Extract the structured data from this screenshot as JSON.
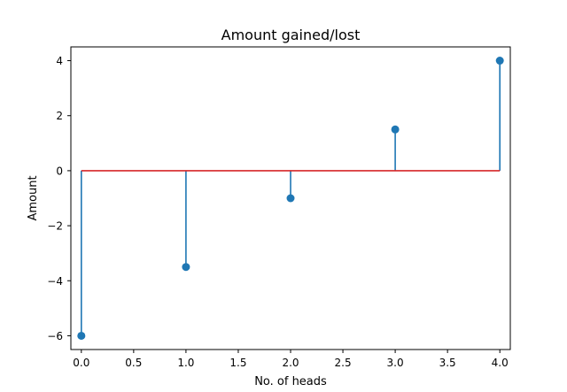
{
  "chart_data": {
    "type": "stem",
    "title": "Amount gained/lost",
    "xlabel": "No. of heads",
    "ylabel": "Amount",
    "x": [
      0,
      1,
      2,
      3,
      4
    ],
    "y": [
      -6,
      -3.5,
      -1,
      1.5,
      4
    ],
    "baseline": 0,
    "xlim": [
      -0.1,
      4.1
    ],
    "ylim": [
      -6.5,
      4.5
    ],
    "xticks": [
      0,
      0.5,
      1,
      1.5,
      2,
      2.5,
      3,
      3.5,
      4
    ],
    "xtick_labels": [
      "0.0",
      "0.5",
      "1.0",
      "1.5",
      "2.0",
      "2.5",
      "3.0",
      "3.5",
      "4.0"
    ],
    "yticks": [
      4,
      2,
      0,
      -2,
      -4,
      -6
    ],
    "ytick_labels": [
      "4",
      "2",
      "0",
      "−2",
      "−4",
      "−6"
    ],
    "grid": false,
    "colors": {
      "stem": "#1f77b4",
      "marker": "#1f77b4",
      "baseline": "#d62728",
      "axes": "#000000"
    }
  }
}
